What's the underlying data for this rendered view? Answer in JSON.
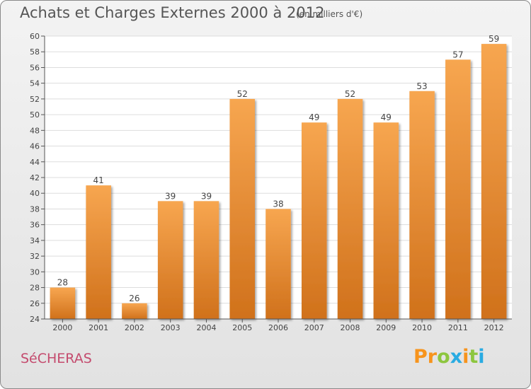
{
  "header": {
    "title": "Achats et Charges Externes 2000 à 2012",
    "subtitle": "(en milliers d'€)"
  },
  "footer": {
    "place": "SéCHERAS",
    "brand": "Proxiti",
    "brand_letters": [
      {
        "ch": "P",
        "color": "#f7941d"
      },
      {
        "ch": "r",
        "color": "#f7941d"
      },
      {
        "ch": "o",
        "color": "#8dc63f"
      },
      {
        "ch": "x",
        "color": "#29abe2"
      },
      {
        "ch": "i",
        "color": "#f7941d"
      },
      {
        "ch": "t",
        "color": "#8dc63f"
      },
      {
        "ch": "i",
        "color": "#29abe2"
      }
    ]
  },
  "chart_data": {
    "type": "bar",
    "title": "Achats et Charges Externes 2000 à 2012",
    "subtitle": "(en milliers d'€)",
    "categories": [
      "2000",
      "2001",
      "2002",
      "2003",
      "2004",
      "2005",
      "2006",
      "2007",
      "2008",
      "2009",
      "2010",
      "2011",
      "2012"
    ],
    "values": [
      28,
      41,
      26,
      39,
      39,
      52,
      38,
      49,
      52,
      49,
      53,
      57,
      59
    ],
    "ylim": [
      24,
      60
    ],
    "yticks": [
      24,
      26,
      28,
      30,
      32,
      34,
      36,
      38,
      40,
      42,
      44,
      46,
      48,
      50,
      52,
      54,
      56,
      58,
      60
    ],
    "grid": true,
    "bar_color_top": "#f7a650",
    "bar_color_bottom": "#d0711b"
  }
}
